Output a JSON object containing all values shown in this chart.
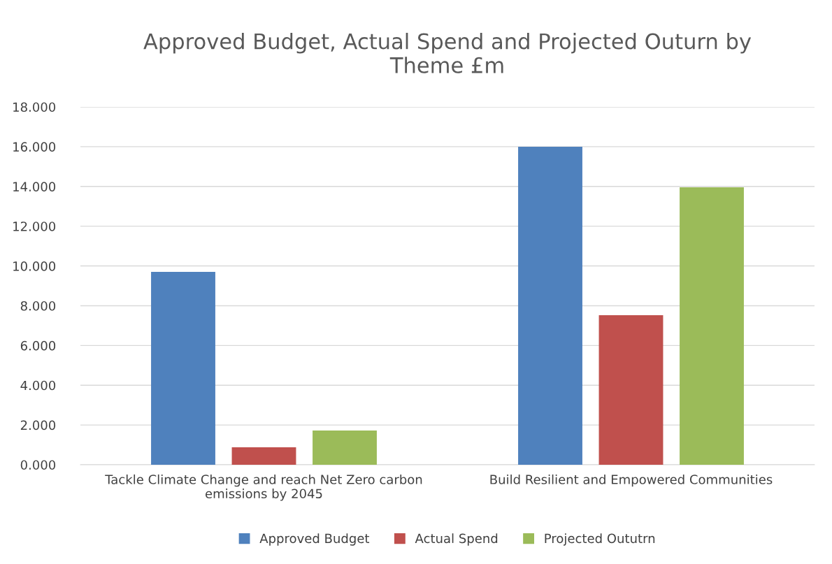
{
  "chart_data": {
    "type": "bar",
    "title": "Approved Budget, Actual Spend and Projected Outurn by\nTheme £m",
    "categories": [
      "Tackle Climate Change and reach Net Zero carbon\nemissions by 2045",
      "Build Resilient and Empowered Communities"
    ],
    "series": [
      {
        "name": "Approved Budget",
        "color": "#4f81bd",
        "values": [
          9.7,
          16.0
        ]
      },
      {
        "name": "Actual Spend",
        "color": "#c0504d",
        "values": [
          0.88,
          7.52
        ]
      },
      {
        "name": "Projected Oututrn",
        "color": "#9bbb59",
        "values": [
          1.72,
          13.96
        ]
      }
    ],
    "ylim": [
      0,
      18
    ],
    "yticks": [
      {
        "value": 0,
        "label": "0.000"
      },
      {
        "value": 2,
        "label": "2.000"
      },
      {
        "value": 4,
        "label": "4.000"
      },
      {
        "value": 6,
        "label": "6.000"
      },
      {
        "value": 8,
        "label": "8.000"
      },
      {
        "value": 10,
        "label": "10.000"
      },
      {
        "value": 12,
        "label": "12.000"
      },
      {
        "value": 14,
        "label": "14.000"
      },
      {
        "value": 16,
        "label": "16.000"
      },
      {
        "value": 18,
        "label": "18.000"
      }
    ],
    "grid": "y",
    "legend": "bottom"
  }
}
